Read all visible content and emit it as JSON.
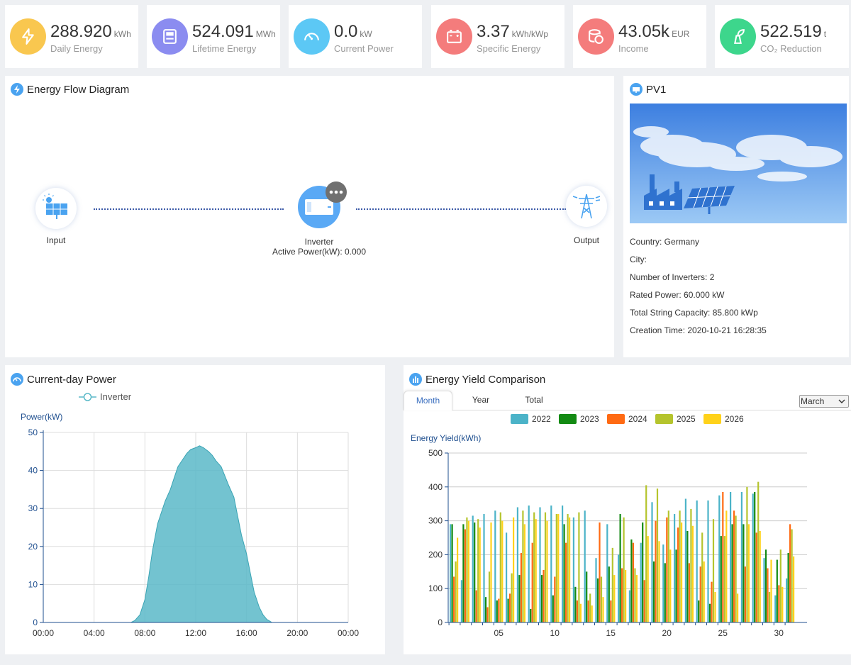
{
  "kpis": [
    {
      "value": "288.920",
      "unit": "kWh",
      "label": "Daily Energy",
      "icon": "lightning-icon",
      "color": "#f9c74f"
    },
    {
      "value": "524.091",
      "unit": "MWh",
      "label": "Lifetime Energy",
      "icon": "meter-icon",
      "color": "#8b8cf0"
    },
    {
      "value": "0.0",
      "unit": "kW",
      "label": "Current Power",
      "icon": "gauge-icon",
      "color": "#5cc8f5"
    },
    {
      "value": "3.37",
      "unit": "kWh/kWp",
      "label": "Specific Energy",
      "icon": "battery-icon",
      "color": "#f47c7c"
    },
    {
      "value": "43.05k",
      "unit": "EUR",
      "label": "Income",
      "icon": "coins-icon",
      "color": "#f47c7c"
    },
    {
      "value": "522.519",
      "unit": "t",
      "label": "CO₂ Reduction",
      "icon": "leaf-icon",
      "color": "#3dd68c"
    }
  ],
  "flow": {
    "title": "Energy Flow Diagram",
    "input_label": "Input",
    "inverter_label": "Inverter",
    "inverter_power": "Active Power(kW): 0.000",
    "output_label": "Output"
  },
  "plant": {
    "title": "PV1",
    "country": "Country: Germany",
    "city": "City:",
    "inverters": "Number of Inverters: 2",
    "rated_power": "Rated Power: 60.000 kW",
    "string_capacity": "Total String Capacity: 85.800 kWp",
    "creation_time": "Creation Time: 2020-10-21 16:28:35"
  },
  "power_chart": {
    "title": "Current-day Power",
    "legend": "Inverter"
  },
  "yield": {
    "title": "Energy Yield Comparison",
    "tabs": [
      "Month",
      "Year",
      "Total"
    ],
    "month_select": "March"
  },
  "chart_data": [
    {
      "type": "area",
      "title": "Current-day Power",
      "ylabel": "Power(kW)",
      "ylim": [
        0,
        50
      ],
      "yticks": [
        0,
        10,
        20,
        30,
        40,
        50
      ],
      "xticks": [
        "00:00",
        "04:00",
        "08:00",
        "12:00",
        "16:00",
        "20:00",
        "00:00"
      ],
      "series": [
        {
          "name": "Inverter",
          "color": "#5ab9c8",
          "x": [
            0,
            6.9,
            7.2,
            7.6,
            8.0,
            8.3,
            8.6,
            9.0,
            9.3,
            9.6,
            10.0,
            10.3,
            10.6,
            11.0,
            11.3,
            11.6,
            12.0,
            12.3,
            12.6,
            13.0,
            13.3,
            13.6,
            14.0,
            14.3,
            14.6,
            15.0,
            15.3,
            15.6,
            16.0,
            16.3,
            16.6,
            17.0,
            17.3,
            17.6,
            18.0,
            18.3,
            24
          ],
          "y": [
            0,
            0,
            0.5,
            2,
            6,
            12,
            19,
            26,
            29,
            32,
            35,
            38,
            41,
            43,
            44.5,
            45.5,
            46,
            46.5,
            46,
            45,
            44,
            42.5,
            41,
            38.5,
            36,
            33,
            28,
            23,
            18,
            13,
            8,
            4,
            2,
            0.8,
            0,
            0,
            0
          ]
        }
      ]
    },
    {
      "type": "bar",
      "title": "Energy Yield Comparison",
      "ylabel": "Energy Yield(kWh)",
      "ylim": [
        0,
        500
      ],
      "yticks": [
        0,
        100,
        200,
        300,
        400,
        500
      ],
      "xticks": [
        "05",
        "10",
        "15",
        "20",
        "25",
        "30"
      ],
      "categories": [
        "01",
        "02",
        "03",
        "04",
        "05",
        "06",
        "07",
        "08",
        "09",
        "10",
        "11",
        "12",
        "13",
        "14",
        "15",
        "16",
        "17",
        "18",
        "19",
        "20",
        "21",
        "22",
        "23",
        "24",
        "25",
        "26",
        "27",
        "28",
        "29",
        "30",
        "31"
      ],
      "series": [
        {
          "name": "2022",
          "color": "#4bb3c8",
          "values": [
            290,
            125,
            315,
            320,
            330,
            265,
            340,
            345,
            340,
            345,
            345,
            310,
            330,
            190,
            290,
            200,
            95,
            235,
            355,
            230,
            320,
            365,
            360,
            360,
            375,
            385,
            385,
            380,
            190,
            80,
            130
          ]
        },
        {
          "name": "2023",
          "color": "#138a13",
          "values": [
            290,
            290,
            295,
            75,
            65,
            70,
            140,
            40,
            140,
            80,
            290,
            105,
            150,
            130,
            165,
            320,
            245,
            295,
            180,
            175,
            215,
            270,
            65,
            55,
            255,
            290,
            290,
            385,
            215,
            185,
            205
          ]
        },
        {
          "name": "2024",
          "color": "#ff6a13",
          "values": [
            135,
            275,
            95,
            45,
            70,
            85,
            205,
            235,
            155,
            135,
            235,
            65,
            65,
            295,
            65,
            160,
            235,
            125,
            300,
            310,
            280,
            175,
            165,
            120,
            385,
            330,
            165,
            265,
            160,
            110,
            290
          ]
        },
        {
          "name": "2025",
          "color": "#b5c42d",
          "values": [
            180,
            310,
            305,
            150,
            325,
            145,
            330,
            325,
            325,
            320,
            320,
            325,
            85,
            135,
            220,
            310,
            160,
            405,
            395,
            330,
            330,
            335,
            265,
            305,
            255,
            315,
            400,
            415,
            90,
            215,
            275
          ]
        },
        {
          "name": "2026",
          "color": "#ffd21a",
          "values": [
            250,
            300,
            280,
            295,
            300,
            310,
            290,
            305,
            300,
            320,
            310,
            55,
            50,
            75,
            140,
            155,
            140,
            255,
            240,
            215,
            295,
            285,
            180,
            90,
            330,
            85,
            290,
            270,
            185,
            105,
            195
          ]
        }
      ]
    }
  ]
}
